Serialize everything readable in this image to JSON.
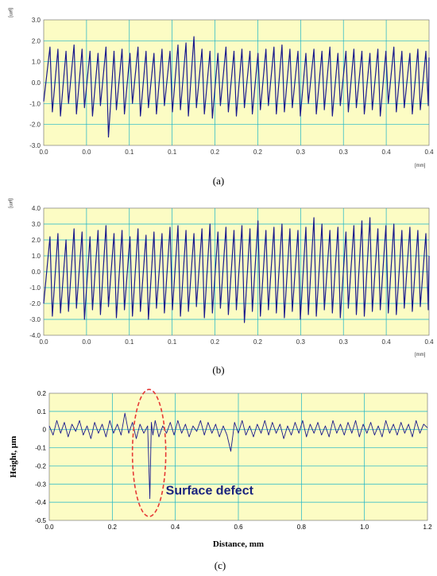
{
  "colors": {
    "plot_bg": "#fcfcc4",
    "grid": "#19b4c8",
    "line": "#1a1a8c",
    "highlight": "#e53935",
    "annotation": "#1a237e"
  },
  "chart_data": [
    {
      "type": "line",
      "unit_y": "[μm]",
      "unit_x": "[mm]",
      "caption": "(a)",
      "xlim": [
        0,
        0.4
      ],
      "ylim": [
        -3,
        3
      ],
      "x_tick_labels": [
        "0.0",
        "0.0",
        "0.1",
        "0.1",
        "0.2",
        "0.2",
        "0.3",
        "0.3",
        "0.4",
        "0.4"
      ],
      "y_tick_labels": [
        "3.0",
        "2.0",
        "1.0",
        "0.0",
        "-1.0",
        "-2.0",
        "-3.0"
      ],
      "grid": true,
      "series": [
        {
          "x": [
            0.0,
            0.0065,
            0.009,
            0.0148,
            0.0174,
            0.0232,
            0.0257,
            0.0315,
            0.034,
            0.0398,
            0.0423,
            0.0481,
            0.0506,
            0.0564,
            0.0589,
            0.0647,
            0.0672,
            0.073,
            0.0755,
            0.0813,
            0.0838,
            0.0896,
            0.0921,
            0.0979,
            0.1004,
            0.1062,
            0.1087,
            0.1145,
            0.117,
            0.1228,
            0.1253,
            0.1311,
            0.1336,
            0.1394,
            0.1419,
            0.1477,
            0.1502,
            0.156,
            0.1585,
            0.1643,
            0.1668,
            0.1726,
            0.1751,
            0.1809,
            0.1834,
            0.1892,
            0.1917,
            0.1975,
            0.2,
            0.2058,
            0.2083,
            0.2141,
            0.2166,
            0.2224,
            0.2249,
            0.2307,
            0.2332,
            0.239,
            0.2415,
            0.2473,
            0.2498,
            0.2556,
            0.2581,
            0.2639,
            0.2664,
            0.2722,
            0.2747,
            0.2805,
            0.283,
            0.2888,
            0.2913,
            0.2971,
            0.2996,
            0.3054,
            0.3079,
            0.3137,
            0.3162,
            0.322,
            0.3245,
            0.3303,
            0.3328,
            0.3386,
            0.3411,
            0.3469,
            0.3494,
            0.3552,
            0.3577,
            0.3635,
            0.366,
            0.3718,
            0.3743,
            0.3801,
            0.3826,
            0.3884,
            0.3909,
            0.3967,
            0.3992,
            0.4
          ],
          "y": [
            -0.9,
            1.7,
            -1.4,
            1.6,
            -1.6,
            1.5,
            -1.0,
            1.8,
            -1.5,
            1.6,
            -1.2,
            1.5,
            -1.6,
            1.4,
            -1.1,
            1.7,
            -2.6,
            1.5,
            -1.3,
            1.6,
            -1.5,
            1.4,
            -1.0,
            1.7,
            -1.6,
            1.5,
            -1.2,
            1.4,
            -1.5,
            1.6,
            -1.1,
            1.5,
            -1.4,
            1.8,
            -1.3,
            1.9,
            -1.6,
            2.2,
            -1.2,
            1.6,
            -1.5,
            1.5,
            -1.7,
            1.4,
            -1.1,
            1.7,
            -1.4,
            1.5,
            -1.6,
            1.6,
            -1.2,
            1.5,
            -1.5,
            1.4,
            -1.3,
            1.6,
            -1.1,
            1.7,
            -1.5,
            1.8,
            -1.4,
            1.6,
            -1.2,
            1.5,
            -1.6,
            1.4,
            -1.0,
            1.6,
            -1.5,
            1.5,
            -1.3,
            1.7,
            -1.6,
            1.4,
            -1.1,
            1.5,
            -1.4,
            1.6,
            -1.2,
            1.5,
            -1.5,
            1.4,
            -1.3,
            1.6,
            -1.6,
            1.5,
            -1.0,
            1.7,
            -1.4,
            1.5,
            -1.2,
            1.4,
            -1.5,
            1.6,
            -1.3,
            1.5,
            -1.1,
            1.2
          ]
        }
      ]
    },
    {
      "type": "line",
      "unit_y": "[μm]",
      "unit_x": "[mm]",
      "caption": "(b)",
      "xlim": [
        0,
        0.4
      ],
      "ylim": [
        -4,
        4
      ],
      "x_tick_labels": [
        "0.0",
        "0.0",
        "0.1",
        "0.1",
        "0.2",
        "0.2",
        "0.3",
        "0.3",
        "0.4",
        "0.4"
      ],
      "y_tick_labels": [
        "4.0",
        "3.0",
        "2.0",
        "1.0",
        "0.0",
        "-1.0",
        "-2.0",
        "-3.0",
        "-4.0"
      ],
      "grid": true,
      "series": [
        {
          "x": [
            0.0,
            0.0065,
            0.009,
            0.0148,
            0.0174,
            0.0232,
            0.0257,
            0.0315,
            0.034,
            0.0398,
            0.0423,
            0.0481,
            0.0506,
            0.0564,
            0.0589,
            0.0647,
            0.0672,
            0.073,
            0.0755,
            0.0813,
            0.0838,
            0.0896,
            0.0921,
            0.0979,
            0.1004,
            0.1062,
            0.1087,
            0.1145,
            0.117,
            0.1228,
            0.1253,
            0.1311,
            0.1336,
            0.1394,
            0.1419,
            0.1477,
            0.1502,
            0.156,
            0.1585,
            0.1643,
            0.1668,
            0.1726,
            0.1751,
            0.1809,
            0.1834,
            0.1892,
            0.1917,
            0.1975,
            0.2,
            0.2058,
            0.2083,
            0.2141,
            0.2166,
            0.2224,
            0.2249,
            0.2307,
            0.2332,
            0.239,
            0.2415,
            0.2473,
            0.2498,
            0.2556,
            0.2581,
            0.2639,
            0.2664,
            0.2722,
            0.2747,
            0.2805,
            0.283,
            0.2888,
            0.2913,
            0.2971,
            0.2996,
            0.3054,
            0.3079,
            0.3137,
            0.3162,
            0.322,
            0.3245,
            0.3303,
            0.3328,
            0.3386,
            0.3411,
            0.3469,
            0.3494,
            0.3552,
            0.3577,
            0.3635,
            0.366,
            0.3718,
            0.3743,
            0.3801,
            0.3826,
            0.3884,
            0.3909,
            0.3967,
            0.3992,
            0.4
          ],
          "y": [
            -2.0,
            2.2,
            -2.8,
            2.4,
            -2.6,
            2.0,
            -2.5,
            2.7,
            -2.3,
            2.5,
            -3.0,
            2.2,
            -2.4,
            2.6,
            -2.7,
            2.9,
            -2.2,
            2.4,
            -2.9,
            2.6,
            -2.4,
            2.2,
            -2.8,
            2.7,
            -2.5,
            2.3,
            -3.0,
            2.5,
            -2.3,
            2.4,
            -2.6,
            2.8,
            -2.4,
            2.9,
            -2.8,
            2.6,
            -2.5,
            2.4,
            -2.2,
            2.7,
            -2.9,
            3.0,
            -2.6,
            2.5,
            -2.3,
            2.8,
            -2.7,
            2.6,
            -2.4,
            2.9,
            -3.2,
            2.7,
            -2.5,
            3.2,
            -2.8,
            2.6,
            -2.4,
            2.8,
            -2.6,
            3.0,
            -2.9,
            2.7,
            -2.5,
            2.6,
            -3.0,
            2.8,
            -2.7,
            3.4,
            -2.8,
            3.0,
            -2.4,
            2.6,
            -2.6,
            2.8,
            -2.9,
            2.5,
            -2.3,
            2.9,
            -2.7,
            3.2,
            -2.8,
            3.4,
            -2.5,
            2.7,
            -2.4,
            2.9,
            -2.6,
            3.0,
            -2.7,
            2.6,
            -2.3,
            2.8,
            -2.5,
            2.6,
            -2.2,
            2.4,
            -2.4,
            1.0
          ]
        }
      ]
    },
    {
      "type": "line",
      "caption": "(c)",
      "xlabel": "Distance, mm",
      "ylabel": "Height, μm",
      "xlim": [
        0,
        1.25
      ],
      "ylim": [
        -0.5,
        0.2
      ],
      "x_tick_labels": [
        "0.0",
        "0.2",
        "0.4",
        "0.6",
        "0.8",
        "1.0",
        "1.2"
      ],
      "y_tick_labels": [
        "0.2",
        "0.1",
        "0",
        "-0.1",
        "-0.2",
        "-0.3",
        "-0.4",
        "-0.5"
      ],
      "grid": true,
      "annotations": [
        {
          "text": "Surface  defect",
          "x": 0.33,
          "y": -0.38
        }
      ],
      "series": [
        {
          "x": [
            0.0,
            0.0125,
            0.025,
            0.0375,
            0.05,
            0.0625,
            0.075,
            0.0875,
            0.1,
            0.1125,
            0.125,
            0.1375,
            0.15,
            0.1625,
            0.175,
            0.1875,
            0.2,
            0.2125,
            0.225,
            0.2375,
            0.25,
            0.2625,
            0.275,
            0.2875,
            0.3,
            0.3125,
            0.325,
            0.3325,
            0.3375,
            0.3425,
            0.35,
            0.3625,
            0.375,
            0.3875,
            0.4,
            0.4125,
            0.425,
            0.4375,
            0.45,
            0.4625,
            0.475,
            0.4875,
            0.5,
            0.5125,
            0.525,
            0.5375,
            0.55,
            0.5625,
            0.575,
            0.5875,
            0.6,
            0.6125,
            0.625,
            0.6375,
            0.65,
            0.6625,
            0.675,
            0.6875,
            0.7,
            0.7125,
            0.725,
            0.7375,
            0.75,
            0.7625,
            0.775,
            0.7875,
            0.8,
            0.8125,
            0.825,
            0.8375,
            0.85,
            0.8625,
            0.875,
            0.8875,
            0.9,
            0.9125,
            0.925,
            0.9375,
            0.95,
            0.9625,
            0.975,
            0.9875,
            1.0,
            1.0125,
            1.025,
            1.0375,
            1.05,
            1.0625,
            1.075,
            1.0875,
            1.1,
            1.1125,
            1.125,
            1.1375,
            1.15,
            1.1625,
            1.175,
            1.1875,
            1.2,
            1.2125,
            1.225,
            1.2375,
            1.25
          ],
          "y": [
            0.02,
            -0.03,
            0.05,
            -0.02,
            0.04,
            -0.04,
            0.03,
            -0.01,
            0.05,
            -0.03,
            0.02,
            -0.05,
            0.04,
            -0.02,
            0.03,
            -0.04,
            0.05,
            -0.02,
            0.03,
            -0.03,
            0.09,
            -0.02,
            0.04,
            -0.05,
            0.03,
            -0.02,
            0.02,
            -0.38,
            0.04,
            -0.03,
            0.05,
            -0.04,
            0.02,
            -0.02,
            0.04,
            -0.03,
            0.05,
            -0.02,
            0.03,
            -0.04,
            0.02,
            -0.01,
            0.05,
            -0.03,
            0.04,
            -0.02,
            0.03,
            -0.04,
            0.02,
            -0.03,
            -0.12,
            0.04,
            -0.02,
            0.05,
            -0.03,
            0.02,
            -0.04,
            0.03,
            -0.02,
            0.05,
            -0.03,
            0.04,
            -0.02,
            0.03,
            -0.05,
            0.02,
            -0.03,
            0.04,
            -0.02,
            0.05,
            -0.04,
            0.03,
            -0.02,
            0.04,
            -0.03,
            0.02,
            -0.04,
            0.05,
            -0.02,
            0.03,
            -0.03,
            0.04,
            -0.02,
            0.05,
            -0.04,
            0.03,
            -0.02,
            0.04,
            -0.03,
            0.02,
            -0.04,
            0.05,
            -0.02,
            0.03,
            -0.03,
            0.04,
            -0.02,
            0.03,
            -0.04,
            0.05,
            -0.02,
            0.03,
            0.01
          ]
        }
      ]
    }
  ]
}
